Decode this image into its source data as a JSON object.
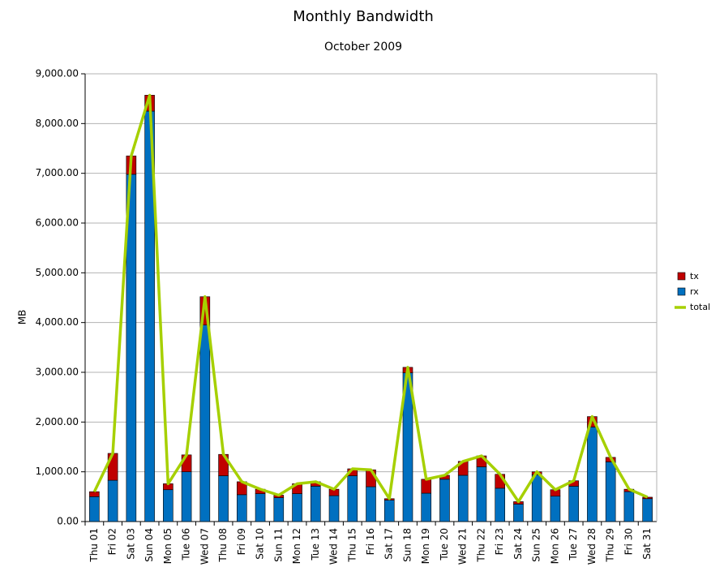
{
  "chart_data": {
    "type": "stacked_bar_line",
    "title": "Monthly Bandwidth",
    "subtitle": "October 2009",
    "y_label": "MB",
    "categories": [
      "Thu 01",
      "Fri 02",
      "Sat 03",
      "Sun 04",
      "Mon 05",
      "Tue 06",
      "Wed 07",
      "Thu 08",
      "Fri 09",
      "Sat 10",
      "Sun 11",
      "Mon 12",
      "Tue 13",
      "Wed 14",
      "Thu 15",
      "Fri 16",
      "Sat 17",
      "Sun 18",
      "Mon 19",
      "Tue 20",
      "Wed 21",
      "Thu 22",
      "Fri 23",
      "Sat 24",
      "Sun 25",
      "Mon 26",
      "Tue 27",
      "Wed 28",
      "Thu 29",
      "Fri 30",
      "Sat 31"
    ],
    "series": [
      {
        "name": "tx",
        "color": "#c00000",
        "kind": "bar",
        "values": [
          100,
          540,
          370,
          320,
          120,
          340,
          570,
          430,
          260,
          90,
          50,
          200,
          90,
          130,
          140,
          340,
          30,
          110,
          280,
          80,
          280,
          220,
          280,
          50,
          60,
          130,
          110,
          210,
          90,
          50,
          30
        ]
      },
      {
        "name": "rx",
        "color": "#0070c0",
        "kind": "bar",
        "values": [
          500,
          830,
          6980,
          8250,
          640,
          1000,
          3950,
          920,
          540,
          560,
          480,
          560,
          710,
          520,
          920,
          700,
          430,
          2990,
          570,
          850,
          930,
          1100,
          670,
          350,
          940,
          510,
          710,
          1900,
          1200,
          600,
          460
        ]
      },
      {
        "name": "total",
        "color": "#a6d000",
        "kind": "line",
        "values": [
          600,
          1370,
          7350,
          8570,
          760,
          1340,
          4520,
          1350,
          800,
          650,
          530,
          760,
          800,
          650,
          1060,
          1040,
          460,
          3100,
          850,
          930,
          1210,
          1320,
          950,
          400,
          1000,
          640,
          820,
          2110,
          1290,
          650,
          490
        ]
      }
    ],
    "ylim": [
      0,
      9000
    ],
    "yticks": [
      {
        "value": 0,
        "label": "0.00"
      },
      {
        "value": 1000,
        "label": "1,000.00"
      },
      {
        "value": 2000,
        "label": "2,000.00"
      },
      {
        "value": 3000,
        "label": "3,000.00"
      },
      {
        "value": 4000,
        "label": "4,000.00"
      },
      {
        "value": 5000,
        "label": "5,000.00"
      },
      {
        "value": 6000,
        "label": "6,000.00"
      },
      {
        "value": 7000,
        "label": "7,000.00"
      },
      {
        "value": 8000,
        "label": "8,000.00"
      },
      {
        "value": 9000,
        "label": "9,000.00"
      }
    ],
    "grid": true,
    "legend": "right"
  }
}
